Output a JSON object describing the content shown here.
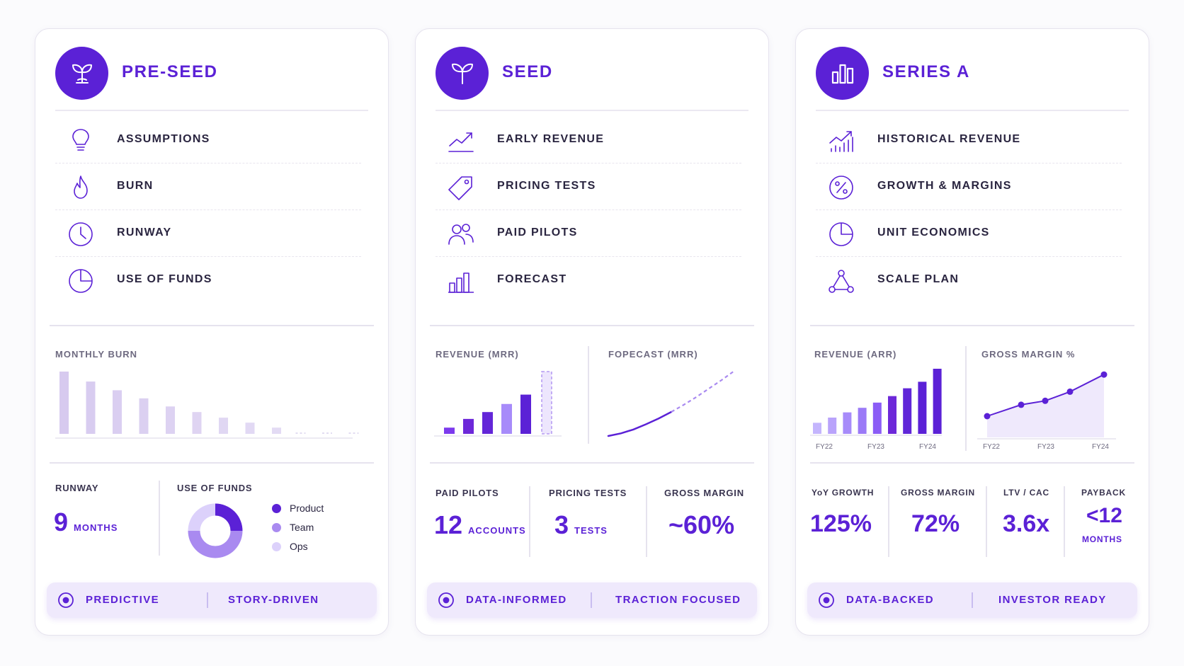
{
  "colors": {
    "accent": "#5b21d6",
    "accent_mid": "#8b5cf6",
    "accent_light": "#c4b5fd",
    "accent_pale": "#e4dcfb"
  },
  "cards": [
    {
      "title": "PRE-SEED",
      "icon": "sprout-icon",
      "features": [
        {
          "label": "ASSUMPTIONS",
          "icon": "lightbulb-icon"
        },
        {
          "label": "BURN",
          "icon": "flame-icon"
        },
        {
          "label": "RUNWAY",
          "icon": "clock-icon"
        },
        {
          "label": "USE OF FUNDS",
          "icon": "pie-chart-icon"
        }
      ],
      "chart_title": "MONTHLY BURN",
      "stats": {
        "runway_label": "RUNWAY",
        "runway_value": "9",
        "runway_unit": "MONTHS",
        "funds_label": "USE OF FUNDS",
        "legend": [
          "Product",
          "Team",
          "Ops"
        ]
      },
      "footer": [
        "PREDICTIVE",
        "STORY-DRIVEN"
      ]
    },
    {
      "title": "SEED",
      "icon": "sprout-icon",
      "features": [
        {
          "label": "EARLY REVENUE",
          "icon": "trend-up-icon"
        },
        {
          "label": "PRICING TESTS",
          "icon": "price-tag-icon"
        },
        {
          "label": "PAID PILOTS",
          "icon": "users-icon"
        },
        {
          "label": "FORECAST",
          "icon": "bar-chart-icon"
        }
      ],
      "chart_titles": [
        "REVENUE (MRR)",
        "FOPECAST (MRR)"
      ],
      "stats": [
        {
          "label": "PAID PILOTS",
          "value": "12",
          "unit": "ACCOUNTS"
        },
        {
          "label": "PRICING TESTS",
          "value": "3",
          "unit": "TESTS"
        },
        {
          "label": "GROSS MARGIN",
          "value": "~60%",
          "unit": ""
        }
      ],
      "footer": [
        "DATA-INFORMED",
        "TRACTION FOCUSED"
      ]
    },
    {
      "title": "SERIES A",
      "icon": "bar-chart-icon",
      "features": [
        {
          "label": "HISTORICAL REVENUE",
          "icon": "growth-chart-icon"
        },
        {
          "label": "GROWTH & MARGINS",
          "icon": "percent-icon"
        },
        {
          "label": "UNIT ECONOMICS",
          "icon": "pie-chart-icon"
        },
        {
          "label": "SCALE PLAN",
          "icon": "network-icon"
        }
      ],
      "chart_titles": [
        "REVENUE (ARR)",
        "GROSS MARGIN %"
      ],
      "axis_labels": [
        "FY22",
        "FY23",
        "FY24"
      ],
      "stats": [
        {
          "label": "YoY GROWTH",
          "value": "125%"
        },
        {
          "label": "GROSS MARGIN",
          "value": "72%"
        },
        {
          "label": "LTV / CAC",
          "value": "3.6x"
        },
        {
          "label": "PAYBACK",
          "value": "<12",
          "sub": "MONTHS"
        }
      ],
      "footer": [
        "DATA-BACKED",
        "INVESTOR READY"
      ]
    }
  ],
  "chart_data": [
    {
      "type": "bar",
      "title": "MONTHLY BURN",
      "values": [
        100,
        84,
        70,
        57,
        44,
        35,
        26,
        18,
        10,
        2,
        2,
        2
      ]
    },
    {
      "type": "bar",
      "title": "REVENUE (MRR)",
      "values": [
        10,
        24,
        35,
        48,
        63,
        100
      ],
      "forecast_last": true
    },
    {
      "type": "line",
      "title": "FOPECAST (MRR)",
      "x": [
        0,
        1,
        2,
        3,
        4,
        5,
        6,
        7,
        8,
        9,
        10
      ],
      "values": [
        0,
        4,
        10,
        18,
        27,
        37,
        48,
        60,
        73,
        86,
        100
      ],
      "actual_until_index": 5
    },
    {
      "type": "bar",
      "title": "REVENUE (ARR)",
      "x_ticks": [
        "FY22",
        "FY23",
        "FY24"
      ],
      "values": [
        17,
        25,
        33,
        40,
        48,
        58,
        70,
        80,
        100
      ]
    },
    {
      "type": "line",
      "title": "GROSS MARGIN %",
      "x_ticks": [
        "FY22",
        "FY23",
        "FY24"
      ],
      "values": [
        0,
        20,
        27,
        43,
        73
      ]
    },
    {
      "type": "pie",
      "title": "USE OF FUNDS",
      "categories": [
        "Product",
        "Team",
        "Ops"
      ],
      "values": [
        25,
        50,
        25
      ]
    }
  ]
}
